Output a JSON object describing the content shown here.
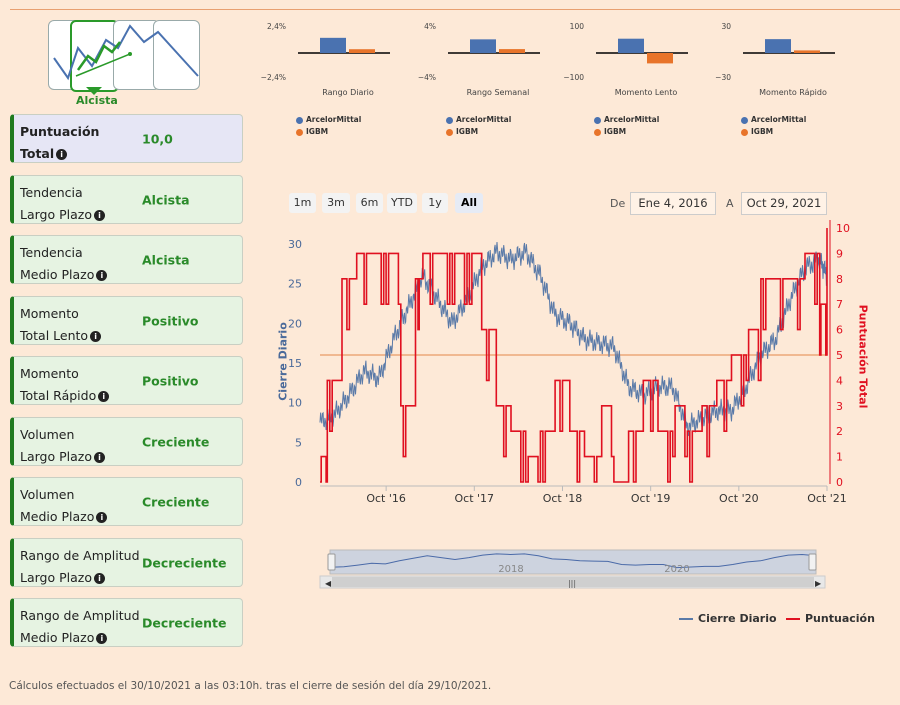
{
  "signal": {
    "label": "Alcista"
  },
  "cards": [
    {
      "label_line1": "Puntuación",
      "label_line2": "Total",
      "value": "10,0"
    },
    {
      "label_line1": "Tendencia",
      "label_line2": "Largo Plazo",
      "value": "Alcista"
    },
    {
      "label_line1": "Tendencia",
      "label_line2": "Medio Plazo",
      "value": "Alcista"
    },
    {
      "label_line1": "Momento",
      "label_line2": "Total Lento",
      "value": "Positivo"
    },
    {
      "label_line1": "Momento",
      "label_line2": "Total Rápido",
      "value": "Positivo"
    },
    {
      "label_line1": "Volumen",
      "label_line2": "Largo Plazo",
      "value": "Creciente"
    },
    {
      "label_line1": "Volumen",
      "label_line2": "Medio Plazo",
      "value": "Creciente"
    },
    {
      "label_line1": "Rango de Amplitud",
      "label_line2": "Largo Plazo",
      "value": "Decreciente"
    },
    {
      "label_line1": "Rango de Amplitud",
      "label_line2": "Medio Plazo",
      "value": "Decreciente"
    }
  ],
  "mini_charts": [
    {
      "title": "Rango Diario",
      "ymax_label": "2,4%",
      "ymin_label": "−2,4%",
      "ylim": [
        -2.4,
        2.4
      ],
      "values": [
        1.4,
        0.35
      ]
    },
    {
      "title": "Rango Semanal",
      "ymax_label": "4%",
      "ymin_label": "−4%",
      "ylim": [
        -4,
        4
      ],
      "values": [
        2.1,
        0.6
      ]
    },
    {
      "title": "Momento Lento",
      "ymax_label": "100",
      "ymin_label": "−100",
      "ylim": [
        -100,
        100
      ],
      "values": [
        55,
        -40
      ]
    },
    {
      "title": "Momento Rápido",
      "ymax_label": "30",
      "ymin_label": "−30",
      "ylim": [
        -30,
        30
      ],
      "values": [
        16,
        3
      ]
    }
  ],
  "mini_legend": [
    "ArcelorMittal",
    "IGBM"
  ],
  "colors": {
    "blue": "#4a72b0",
    "orange": "#e8742a",
    "red": "#e01020",
    "line": "#5a7aa8",
    "green": "#2a8a2a",
    "threshold": "#f0b890"
  },
  "range_selector": {
    "buttons": [
      "1m",
      "3m",
      "6m",
      "YTD",
      "1y",
      "All"
    ],
    "selected": "All",
    "from_label": "De",
    "from": "Ene 4, 2016",
    "to_label": "A",
    "to": "Oct 29, 2021"
  },
  "chart_data": {
    "type": "line",
    "ylabel_left": "Cierre Diario",
    "ylabel_right": "Puntuación Total",
    "ylim_left": [
      0,
      32
    ],
    "ylim_right": [
      0,
      10
    ],
    "x_ticks": [
      "Oct '16",
      "Oct '17",
      "Oct '18",
      "Oct '19",
      "Oct '20",
      "Oct '21"
    ],
    "y_ticks_left": [
      0,
      5,
      10,
      15,
      20,
      25,
      30
    ],
    "y_ticks_right": [
      0,
      1,
      2,
      3,
      4,
      5,
      6,
      7,
      8,
      9,
      10
    ],
    "threshold": 5,
    "x_range": [
      "2016-01",
      "2021-10"
    ],
    "series": [
      {
        "name": "Cierre Diario",
        "axis": "left",
        "x": [
          "2016-01",
          "2016-03",
          "2016-05",
          "2016-07",
          "2016-09",
          "2016-11",
          "2017-01",
          "2017-03",
          "2017-05",
          "2017-07",
          "2017-09",
          "2017-11",
          "2018-01",
          "2018-03",
          "2018-05",
          "2018-07",
          "2018-09",
          "2018-11",
          "2019-01",
          "2019-03",
          "2019-05",
          "2019-07",
          "2019-09",
          "2019-11",
          "2020-01",
          "2020-03",
          "2020-05",
          "2020-07",
          "2020-09",
          "2020-11",
          "2021-01",
          "2021-03",
          "2021-05",
          "2021-07",
          "2021-09",
          "2021-10"
        ],
        "values": [
          7.5,
          8.5,
          11,
          14,
          13,
          18,
          22,
          26,
          23,
          20,
          23,
          27,
          29,
          28,
          29,
          26,
          21,
          20,
          18,
          17.5,
          17,
          12,
          11,
          12,
          12,
          7,
          8,
          9,
          9,
          12,
          16,
          18,
          23,
          27,
          28,
          26
        ]
      },
      {
        "name": "Puntuación",
        "axis": "right",
        "x": [
          "2016-01",
          "2016-02",
          "2016-04",
          "2016-06",
          "2016-08",
          "2016-10",
          "2016-12",
          "2017-02",
          "2017-03",
          "2017-05",
          "2017-07",
          "2017-09",
          "2017-11",
          "2018-01",
          "2018-03",
          "2018-05",
          "2018-07",
          "2018-09",
          "2018-11",
          "2019-01",
          "2019-03",
          "2019-05",
          "2019-07",
          "2019-09",
          "2019-11",
          "2020-01",
          "2020-03",
          "2020-05",
          "2020-07",
          "2020-09",
          "2020-11",
          "2021-01",
          "2021-03",
          "2021-05",
          "2021-07",
          "2021-09",
          "2021-10"
        ],
        "values": [
          1,
          4,
          8,
          9,
          9,
          9,
          3,
          8,
          9,
          9,
          9,
          9,
          6,
          3,
          2,
          1,
          2,
          4,
          2,
          1,
          3,
          0,
          2,
          4,
          2,
          3,
          2,
          3,
          4,
          5,
          6,
          8,
          8,
          8,
          9,
          7,
          10
        ]
      }
    ],
    "legend": [
      "Cierre Diario",
      "Puntuación"
    ]
  },
  "navigator": {
    "years": [
      "2018",
      "2020"
    ]
  },
  "footer": "Cálculos efectuados el 30/10/2021 a las 03:10h. tras el cierre de sesión del día 29/10/2021."
}
